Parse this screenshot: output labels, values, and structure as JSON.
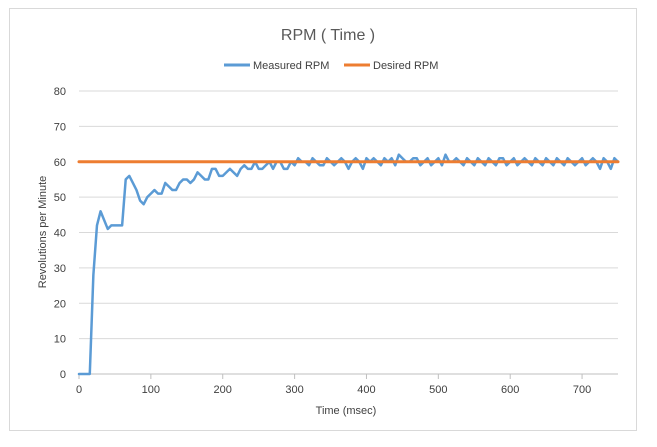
{
  "chart_data": {
    "type": "line",
    "title": "RPM ( Time )",
    "xlabel": "Time (msec)",
    "ylabel": "Revolutions per Minute",
    "xlim": [
      0,
      750
    ],
    "ylim": [
      0,
      80
    ],
    "xticks": [
      0,
      100,
      200,
      300,
      400,
      500,
      600,
      700
    ],
    "yticks": [
      0,
      10,
      20,
      30,
      40,
      50,
      60,
      70,
      80
    ],
    "grid": "horizontal",
    "legend_position": "top",
    "series": [
      {
        "name": "Measured RPM",
        "color": "#5b9bd5",
        "x": [
          0,
          10,
          15,
          20,
          25,
          30,
          40,
          45,
          50,
          55,
          60,
          65,
          70,
          75,
          80,
          85,
          90,
          95,
          100,
          105,
          110,
          115,
          120,
          125,
          130,
          135,
          140,
          145,
          150,
          155,
          160,
          165,
          170,
          175,
          180,
          185,
          190,
          195,
          200,
          205,
          210,
          215,
          220,
          225,
          230,
          235,
          240,
          245,
          250,
          255,
          260,
          265,
          270,
          275,
          280,
          285,
          290,
          295,
          300,
          305,
          310,
          315,
          320,
          325,
          330,
          335,
          340,
          345,
          350,
          355,
          360,
          365,
          370,
          375,
          380,
          385,
          390,
          395,
          400,
          405,
          410,
          415,
          420,
          425,
          430,
          435,
          440,
          445,
          450,
          455,
          460,
          465,
          470,
          475,
          480,
          485,
          490,
          495,
          500,
          505,
          510,
          515,
          520,
          525,
          530,
          535,
          540,
          545,
          550,
          555,
          560,
          565,
          570,
          575,
          580,
          585,
          590,
          595,
          600,
          605,
          610,
          615,
          620,
          625,
          630,
          635,
          640,
          645,
          650,
          655,
          660,
          665,
          670,
          675,
          680,
          685,
          690,
          695,
          700,
          705,
          710,
          715,
          720,
          725,
          730,
          735,
          740,
          745,
          750
        ],
        "values": [
          0,
          0,
          0,
          28,
          42,
          46,
          41,
          42,
          42,
          42,
          42,
          55,
          56,
          54,
          52,
          49,
          48,
          50,
          51,
          52,
          51,
          51,
          54,
          53,
          52,
          52,
          54,
          55,
          55,
          54,
          55,
          57,
          56,
          55,
          55,
          58,
          58,
          56,
          56,
          57,
          58,
          57,
          56,
          58,
          59,
          58,
          58,
          60,
          58,
          58,
          59,
          60,
          58,
          60,
          60,
          58,
          58,
          60,
          59,
          61,
          60,
          60,
          59,
          61,
          60,
          59,
          59,
          61,
          60,
          59,
          60,
          61,
          60,
          58,
          60,
          61,
          60,
          58,
          61,
          60,
          61,
          60,
          59,
          61,
          60,
          61,
          59,
          62,
          61,
          60,
          60,
          61,
          61,
          59,
          60,
          61,
          59,
          60,
          61,
          59,
          62,
          60,
          60,
          61,
          60,
          59,
          61,
          60,
          59,
          61,
          60,
          59,
          61,
          60,
          59,
          61,
          61,
          59,
          60,
          61,
          59,
          60,
          61,
          60,
          59,
          61,
          60,
          59,
          61,
          60,
          59,
          61,
          60,
          59,
          61,
          60,
          59,
          60,
          61,
          59,
          60,
          61,
          60,
          58,
          61,
          60,
          58,
          61,
          60
        ]
      },
      {
        "name": "Desired RPM",
        "color": "#ed7d31",
        "x": [
          0,
          750
        ],
        "values": [
          60,
          60
        ]
      }
    ]
  }
}
